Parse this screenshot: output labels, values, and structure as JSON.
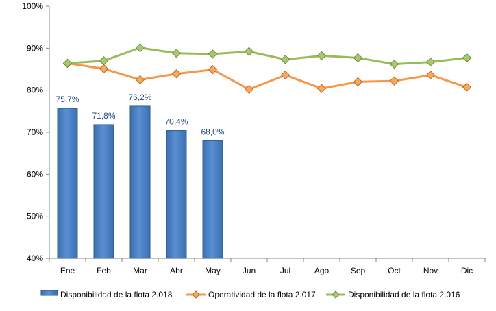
{
  "chart_data": {
    "type": "bar+line",
    "categories": [
      "Ene",
      "Feb",
      "Mar",
      "Abr",
      "May",
      "Jun",
      "Jul",
      "Ago",
      "Sep",
      "Oct",
      "Nov",
      "Dic"
    ],
    "ylim": [
      40,
      100
    ],
    "yticks": [
      40,
      50,
      60,
      70,
      80,
      90,
      100
    ],
    "ytick_labels": [
      "40%",
      "50%",
      "60%",
      "70%",
      "80%",
      "90%",
      "100%"
    ],
    "grid": false,
    "legend_position": "bottom",
    "series": [
      {
        "name": "Disponibilidad de la flota 2.018",
        "type": "bar",
        "color": "#4F81BD",
        "values": [
          75.7,
          71.8,
          76.2,
          70.4,
          68.0,
          null,
          null,
          null,
          null,
          null,
          null,
          null
        ],
        "labels": [
          "75,7%",
          "71,8%",
          "76,2%",
          "70,4%",
          "68,0%"
        ]
      },
      {
        "name": "Operatividad de la flota 2.017",
        "type": "line",
        "color": "#F79646",
        "values": [
          86.4,
          85.1,
          82.5,
          83.9,
          84.9,
          80.2,
          83.6,
          80.4,
          82.0,
          82.2,
          83.6,
          80.7
        ]
      },
      {
        "name": "Disponibilidad de la flota 2.016",
        "type": "line",
        "color": "#9BBB59",
        "values": [
          86.4,
          87.0,
          90.1,
          88.8,
          88.6,
          89.2,
          87.3,
          88.2,
          87.7,
          86.2,
          86.7,
          87.7
        ]
      }
    ]
  }
}
